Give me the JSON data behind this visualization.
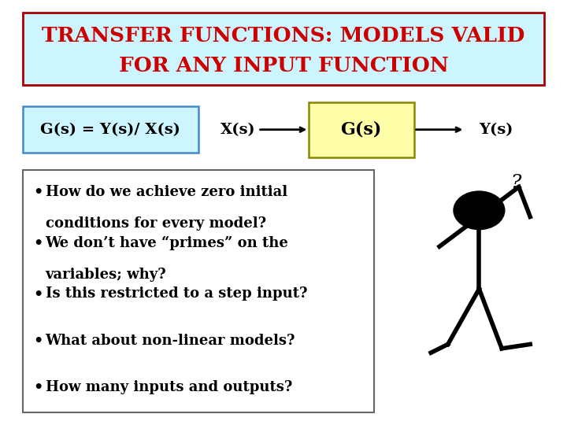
{
  "title_line1": "TRANSFER FUNCTIONS: MODELS VALID",
  "title_line2": "FOR ANY INPUT FUNCTION",
  "title_color": "#cc0000",
  "title_bg": "#ccf5ff",
  "title_border": "#aa0000",
  "formula_text": "G(s) = Y(s)/ X(s)",
  "formula_bg": "#ccf5ff",
  "formula_border": "#4488cc",
  "xs_text": "X(s)",
  "gs_text": "G(s)",
  "gs_bg": "#ffffaa",
  "gs_border": "#888800",
  "ys_text": "Y(s)",
  "bullet_points": [
    [
      "How do we achieve zero initial",
      "conditions for every model?"
    ],
    [
      "We don’t have “primes” on the",
      "variables; why?"
    ],
    [
      "Is this restricted to a step input?"
    ],
    [
      "What about non-linear models?"
    ],
    [
      "How many inputs and outputs?"
    ]
  ],
  "bullet_color": "#000000",
  "bullet_box_bg": "#ffffff",
  "bullet_box_border": "#666666",
  "bg_color": "#ffffff",
  "font_size_title": 19,
  "font_size_formula": 14,
  "font_size_bullets": 13
}
